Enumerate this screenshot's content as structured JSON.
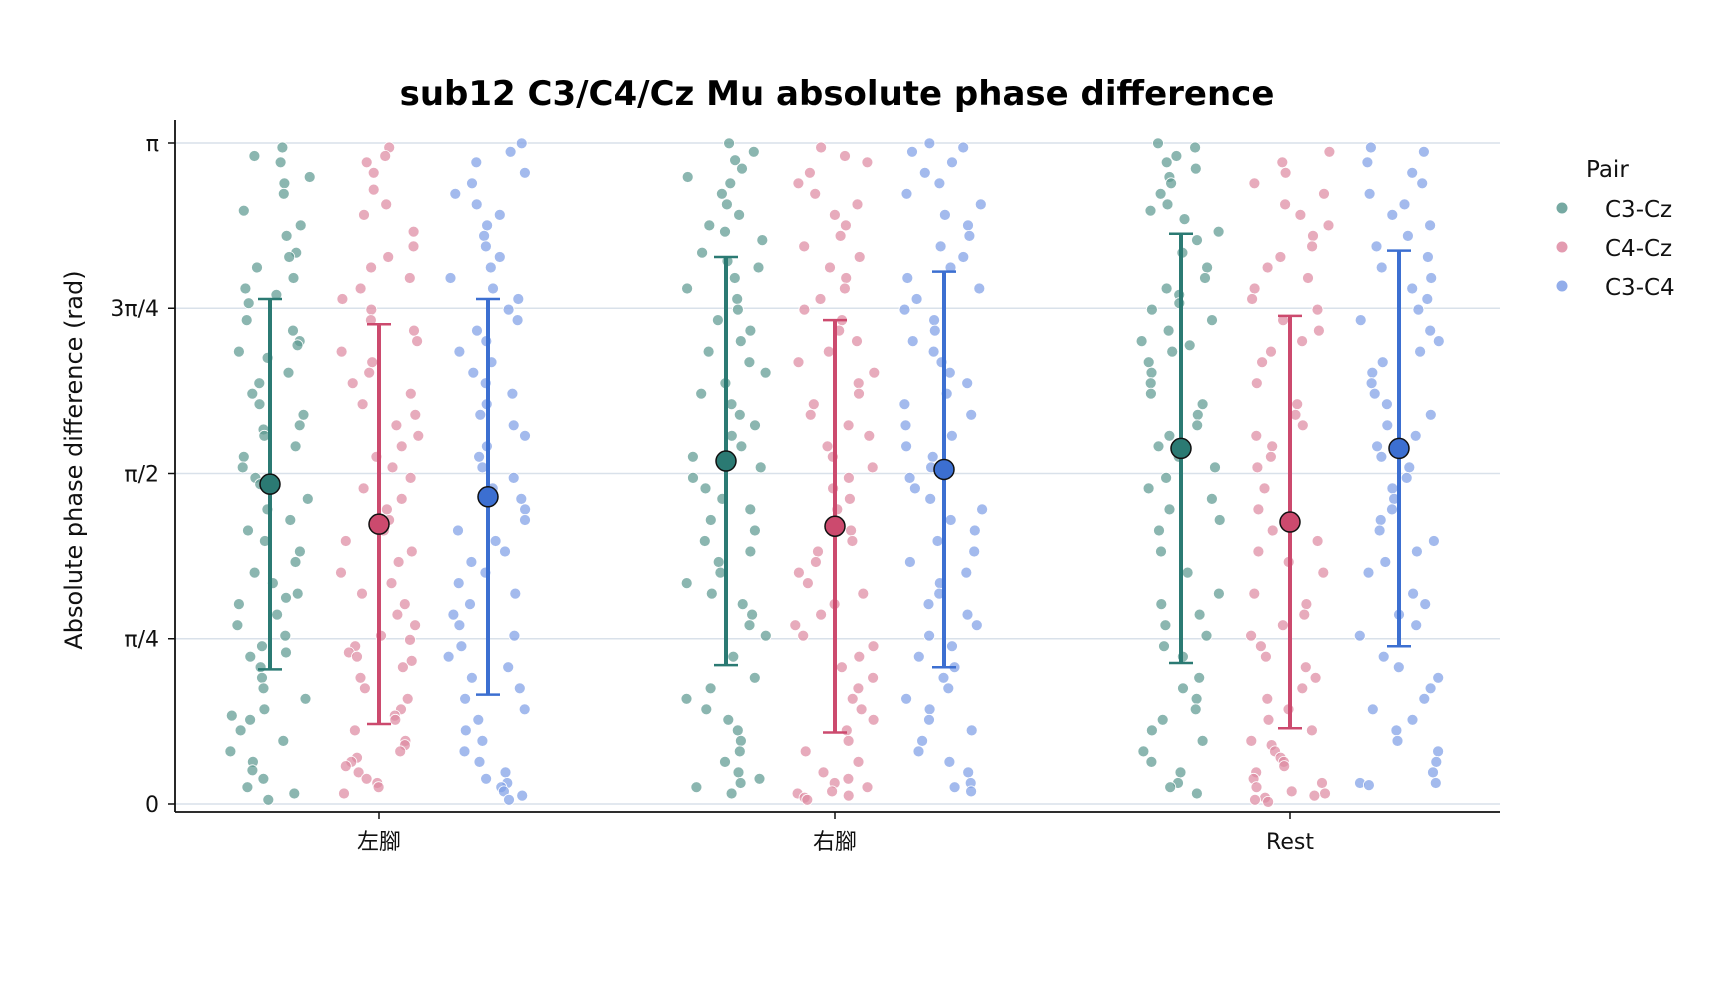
{
  "chart_data": {
    "type": "scatter",
    "title": "sub12 C3/C4/Cz Mu absolute phase difference",
    "ylabel": "Absolute phase difference (rad)",
    "xlabel": "",
    "ylim": [
      0,
      3.14159
    ],
    "categories": [
      "左腳",
      "右腳",
      "Rest"
    ],
    "ytick_values": [
      0,
      0.7854,
      1.5708,
      2.3562,
      3.1416
    ],
    "ytick_labels": [
      "0",
      "π/4",
      "π/2",
      "3π/4",
      "π"
    ],
    "grid": "horizontal",
    "legend": {
      "title": "Pair",
      "placement": "right"
    },
    "series": [
      {
        "name": "C3-Cz",
        "color": "#2b7a73",
        "point_color": "#5e9a92",
        "means": [
          1.52,
          1.63,
          1.69
        ],
        "sd": [
          0.88,
          0.97,
          1.02
        ],
        "points": [
          [
            3.12,
            3.08,
            3.05,
            2.98,
            2.95,
            2.9,
            2.82,
            2.75,
            2.7,
            2.62,
            2.6,
            2.55,
            2.5,
            2.45,
            2.42,
            2.38,
            2.3,
            2.25,
            2.2,
            2.18,
            2.15,
            2.12,
            2.05,
            2.0,
            1.95,
            1.9,
            1.85,
            1.8,
            1.78,
            1.75,
            1.7,
            1.65,
            1.6,
            1.55,
            1.52,
            1.5,
            1.45,
            1.4,
            1.35,
            1.3,
            1.25,
            1.2,
            1.15,
            1.1,
            1.05,
            1.0,
            0.98,
            0.95,
            0.9,
            0.85,
            0.8,
            0.75,
            0.72,
            0.7,
            0.65,
            0.6,
            0.55,
            0.5,
            0.45,
            0.42,
            0.4,
            0.35,
            0.3,
            0.25,
            0.2,
            0.16,
            0.12,
            0.08,
            0.05,
            0.02
          ],
          [
            3.14,
            3.1,
            3.06,
            3.02,
            2.98,
            2.95,
            2.9,
            2.85,
            2.8,
            2.75,
            2.72,
            2.68,
            2.62,
            2.58,
            2.55,
            2.5,
            2.45,
            2.4,
            2.35,
            2.3,
            2.25,
            2.2,
            2.15,
            2.1,
            2.05,
            2.0,
            1.95,
            1.9,
            1.85,
            1.8,
            1.75,
            1.7,
            1.65,
            1.6,
            1.55,
            1.5,
            1.45,
            1.4,
            1.35,
            1.3,
            1.25,
            1.2,
            1.15,
            1.1,
            1.05,
            1.0,
            0.95,
            0.9,
            0.85,
            0.8,
            0.7,
            0.6,
            0.55,
            0.5,
            0.45,
            0.4,
            0.35,
            0.3,
            0.25,
            0.2,
            0.15,
            0.12,
            0.1,
            0.08,
            0.05
          ],
          [
            3.14,
            3.12,
            3.08,
            3.05,
            3.02,
            2.98,
            2.95,
            2.9,
            2.85,
            2.82,
            2.78,
            2.72,
            2.68,
            2.62,
            2.55,
            2.5,
            2.45,
            2.42,
            2.38,
            2.35,
            2.3,
            2.25,
            2.2,
            2.18,
            2.15,
            2.1,
            2.05,
            2.0,
            1.95,
            1.9,
            1.85,
            1.8,
            1.75,
            1.7,
            1.65,
            1.6,
            1.55,
            1.5,
            1.45,
            1.4,
            1.35,
            1.3,
            1.2,
            1.1,
            1.0,
            0.95,
            0.9,
            0.85,
            0.8,
            0.75,
            0.7,
            0.6,
            0.55,
            0.5,
            0.45,
            0.4,
            0.35,
            0.3,
            0.25,
            0.2,
            0.15,
            0.1,
            0.08,
            0.05
          ]
        ]
      },
      {
        "name": "C4-Cz",
        "color": "#cc4a6e",
        "point_color": "#de8aa2",
        "means": [
          1.33,
          1.32,
          1.34
        ],
        "sd": [
          0.95,
          0.98,
          0.98
        ],
        "points": [
          [
            3.12,
            3.08,
            3.05,
            3.0,
            2.92,
            2.85,
            2.8,
            2.72,
            2.65,
            2.6,
            2.55,
            2.5,
            2.45,
            2.4,
            2.35,
            2.3,
            2.25,
            2.2,
            2.15,
            2.1,
            2.05,
            2.0,
            1.95,
            1.9,
            1.85,
            1.8,
            1.75,
            1.7,
            1.65,
            1.6,
            1.55,
            1.5,
            1.45,
            1.4,
            1.35,
            1.3,
            1.25,
            1.2,
            1.15,
            1.1,
            1.05,
            1.0,
            0.95,
            0.9,
            0.85,
            0.8,
            0.78,
            0.75,
            0.72,
            0.7,
            0.68,
            0.65,
            0.6,
            0.55,
            0.5,
            0.45,
            0.42,
            0.4,
            0.35,
            0.3,
            0.28,
            0.25,
            0.22,
            0.2,
            0.18,
            0.15,
            0.12,
            0.1,
            0.08,
            0.05
          ],
          [
            3.12,
            3.08,
            3.05,
            3.0,
            2.95,
            2.9,
            2.85,
            2.8,
            2.75,
            2.7,
            2.65,
            2.6,
            2.55,
            2.5,
            2.45,
            2.4,
            2.35,
            2.3,
            2.25,
            2.2,
            2.15,
            2.1,
            2.05,
            2.0,
            1.95,
            1.9,
            1.85,
            1.8,
            1.75,
            1.7,
            1.65,
            1.6,
            1.55,
            1.5,
            1.45,
            1.4,
            1.35,
            1.3,
            1.25,
            1.2,
            1.15,
            1.1,
            1.05,
            1.0,
            0.95,
            0.9,
            0.85,
            0.8,
            0.75,
            0.7,
            0.65,
            0.6,
            0.55,
            0.5,
            0.45,
            0.4,
            0.35,
            0.3,
            0.25,
            0.2,
            0.15,
            0.12,
            0.1,
            0.08,
            0.06,
            0.05,
            0.04,
            0.03,
            0.02
          ],
          [
            3.1,
            3.05,
            3.0,
            2.95,
            2.9,
            2.85,
            2.8,
            2.75,
            2.7,
            2.65,
            2.6,
            2.55,
            2.5,
            2.45,
            2.4,
            2.35,
            2.3,
            2.25,
            2.2,
            2.15,
            2.1,
            2.0,
            1.9,
            1.85,
            1.8,
            1.75,
            1.7,
            1.65,
            1.6,
            1.5,
            1.4,
            1.3,
            1.25,
            1.2,
            1.15,
            1.1,
            1.0,
            0.95,
            0.9,
            0.85,
            0.8,
            0.75,
            0.7,
            0.65,
            0.6,
            0.55,
            0.5,
            0.45,
            0.4,
            0.35,
            0.3,
            0.28,
            0.25,
            0.22,
            0.2,
            0.18,
            0.15,
            0.12,
            0.1,
            0.08,
            0.06,
            0.05,
            0.04,
            0.03,
            0.02,
            0.01
          ]
        ]
      },
      {
        "name": "C3-C4",
        "color": "#3c6fd1",
        "point_color": "#7f9fe6",
        "means": [
          1.46,
          1.59,
          1.69
        ],
        "sd": [
          0.94,
          0.94,
          0.94
        ],
        "points": [
          [
            3.14,
            3.1,
            3.05,
            3.0,
            2.95,
            2.9,
            2.85,
            2.8,
            2.75,
            2.7,
            2.65,
            2.6,
            2.55,
            2.5,
            2.45,
            2.4,
            2.35,
            2.3,
            2.25,
            2.2,
            2.15,
            2.1,
            2.05,
            2.0,
            1.95,
            1.9,
            1.85,
            1.8,
            1.75,
            1.7,
            1.65,
            1.6,
            1.55,
            1.5,
            1.45,
            1.4,
            1.35,
            1.3,
            1.25,
            1.2,
            1.15,
            1.1,
            1.05,
            1.0,
            0.95,
            0.9,
            0.85,
            0.8,
            0.75,
            0.7,
            0.65,
            0.6,
            0.55,
            0.5,
            0.45,
            0.4,
            0.35,
            0.3,
            0.25,
            0.2,
            0.15,
            0.12,
            0.1,
            0.08,
            0.06,
            0.04,
            0.02
          ],
          [
            3.14,
            3.12,
            3.1,
            3.05,
            3.0,
            2.95,
            2.9,
            2.85,
            2.8,
            2.75,
            2.7,
            2.65,
            2.6,
            2.55,
            2.5,
            2.45,
            2.4,
            2.35,
            2.3,
            2.25,
            2.2,
            2.15,
            2.1,
            2.05,
            2.0,
            1.95,
            1.9,
            1.85,
            1.8,
            1.75,
            1.7,
            1.65,
            1.6,
            1.55,
            1.5,
            1.45,
            1.4,
            1.35,
            1.3,
            1.25,
            1.2,
            1.15,
            1.1,
            1.05,
            1.0,
            0.95,
            0.9,
            0.85,
            0.8,
            0.75,
            0.7,
            0.65,
            0.6,
            0.55,
            0.5,
            0.45,
            0.4,
            0.35,
            0.3,
            0.25,
            0.2,
            0.15,
            0.1,
            0.08,
            0.06
          ],
          [
            3.12,
            3.1,
            3.05,
            3.0,
            2.95,
            2.9,
            2.85,
            2.8,
            2.75,
            2.7,
            2.65,
            2.6,
            2.55,
            2.5,
            2.45,
            2.4,
            2.35,
            2.3,
            2.25,
            2.2,
            2.15,
            2.1,
            2.05,
            2.0,
            1.95,
            1.9,
            1.85,
            1.8,
            1.75,
            1.7,
            1.65,
            1.6,
            1.55,
            1.5,
            1.45,
            1.4,
            1.35,
            1.3,
            1.25,
            1.2,
            1.15,
            1.1,
            1.0,
            0.95,
            0.9,
            0.85,
            0.8,
            0.7,
            0.65,
            0.6,
            0.55,
            0.5,
            0.45,
            0.4,
            0.35,
            0.3,
            0.25,
            0.2,
            0.15,
            0.1,
            0.1,
            0.09
          ]
        ]
      }
    ]
  }
}
